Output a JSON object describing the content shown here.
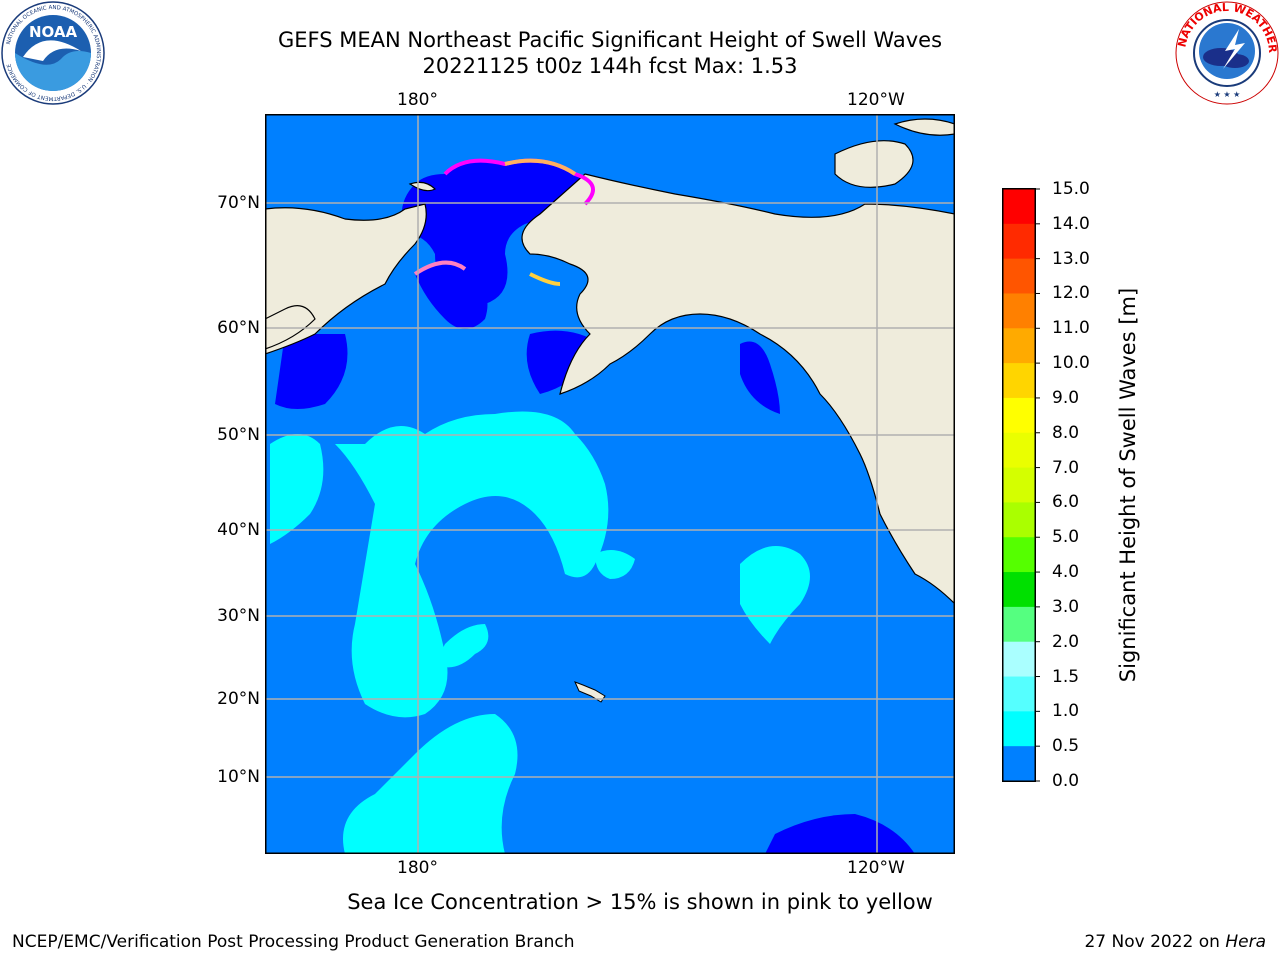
{
  "title": {
    "line1": "GEFS MEAN Northeast Pacific Significant Height of Swell Waves",
    "line2": "20221125 t00z 144h fcst   Max: 1.53"
  },
  "map": {
    "lon_labels": [
      "180°",
      "120°W"
    ],
    "lat_labels": [
      "70°N",
      "60°N",
      "50°N",
      "40°N",
      "30°N",
      "20°N",
      "10°N"
    ],
    "land_color": "#efecdc",
    "ocean_colors": {
      "0.0-0.5": "#0000ff",
      "0.5-1.0": "#0080ff",
      "1.0-1.5": "#00ffff"
    },
    "ice_colors": [
      "#ff00ff",
      "#ff80c0",
      "#ffb060",
      "#ffd040"
    ]
  },
  "colorbar": {
    "label": "Significant Height of Swell Waves [m]",
    "ticks": [
      "15.0",
      "14.0",
      "13.0",
      "12.0",
      "11.0",
      "10.0",
      "9.0",
      "8.0",
      "7.0",
      "6.0",
      "5.0",
      "4.0",
      "3.0",
      "2.0",
      "1.5",
      "1.0",
      "0.5",
      "0.0"
    ],
    "colors": [
      "#ff0000",
      "#ff2a00",
      "#ff5500",
      "#ff8000",
      "#ffaa00",
      "#ffd500",
      "#ffff00",
      "#eaff00",
      "#d4ff00",
      "#aaff00",
      "#55ff00",
      "#00e000",
      "#55ff80",
      "#aaffff",
      "#55ffff",
      "#00ffff",
      "#0080ff",
      "#0000ff"
    ]
  },
  "note": "Sea Ice Concentration > 15% is shown in pink to yellow",
  "footer": {
    "left": "NCEP/EMC/Verification Post Processing Product Generation Branch",
    "date": "27 Nov 2022 on ",
    "machine": "Hera"
  },
  "logos": {
    "noaa": "NOAA",
    "noaa_ring": "NATIONAL OCEANIC AND ATMOSPHERIC ADMINISTRATION · U.S. DEPARTMENT OF COMMERCE",
    "nws_ring": "NATIONAL WEATHER SERVICE"
  }
}
